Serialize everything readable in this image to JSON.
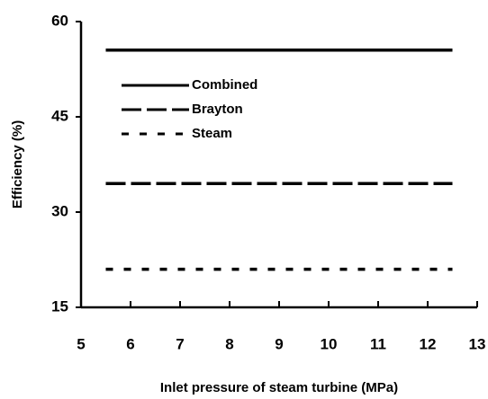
{
  "chart_data": {
    "type": "line",
    "xlabel": "Inlet pressure of steam turbine (MPa)",
    "ylabel": "Efficiency (%)",
    "x": [
      5.5,
      6,
      7,
      8,
      9,
      10,
      11,
      12,
      12.5
    ],
    "series": [
      {
        "name": "Combined",
        "color": "#000000",
        "dash": "solid",
        "values": [
          55.5,
          55.5,
          55.5,
          55.5,
          55.5,
          55.5,
          55.5,
          55.5,
          55.5
        ]
      },
      {
        "name": "Brayton",
        "color": "#000000",
        "dash": "long-dash",
        "values": [
          34.5,
          34.5,
          34.5,
          34.5,
          34.5,
          34.5,
          34.5,
          34.5,
          34.5
        ]
      },
      {
        "name": "Steam",
        "color": "#000000",
        "dash": "short-dash",
        "values": [
          21,
          21,
          21,
          21,
          21,
          21,
          21,
          21,
          21
        ]
      }
    ],
    "xlim": [
      5,
      13
    ],
    "xticks": [
      5,
      6,
      7,
      8,
      9,
      10,
      11,
      12,
      13
    ],
    "ylim": [
      15,
      60
    ],
    "yticks": [
      15,
      30,
      45,
      60
    ],
    "grid": false,
    "legend": "upper-left"
  }
}
